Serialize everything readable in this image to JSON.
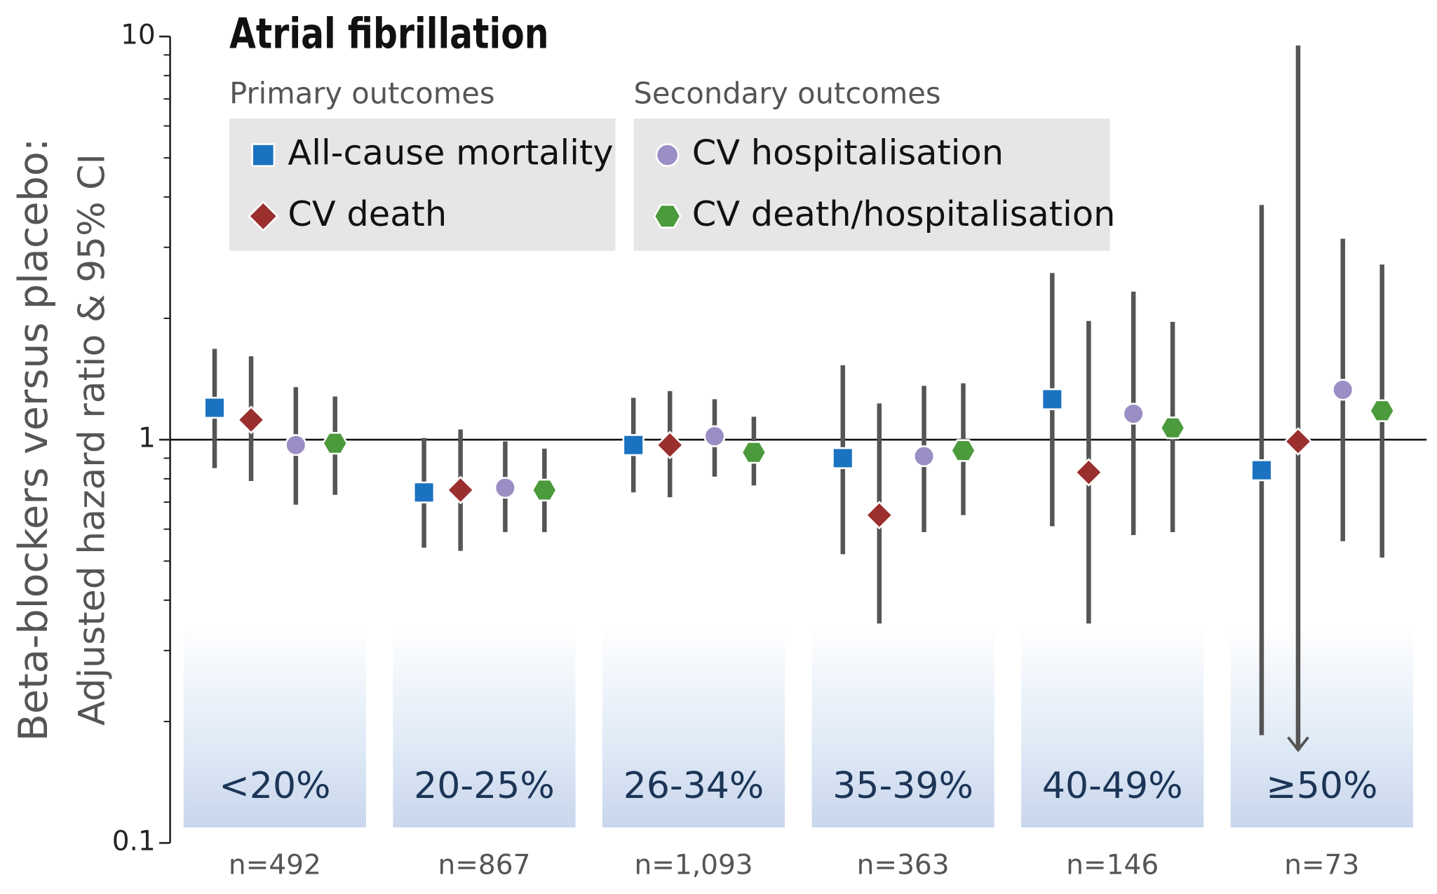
{
  "chart_data": {
    "type": "forest",
    "title": "Atrial fibrillation",
    "ylabel": [
      "Beta-blockers versus placebo:",
      "Adjusted hazard ratio & 95% CI"
    ],
    "log_scale": true,
    "ylim": [
      0.1,
      10
    ],
    "yticks": [
      0.1,
      1,
      10
    ],
    "minor_ticks": true,
    "reference_line": 1,
    "categories": [
      "<20%",
      "20-25%",
      "26-34%",
      "35-39%",
      "40-49%",
      "≥50%"
    ],
    "n_labels": [
      "n=492",
      "n=867",
      "n=1,093",
      "n=363",
      "n=146",
      "n=73"
    ],
    "legend_groups": [
      {
        "title": "Primary outcomes",
        "series": [
          0,
          1
        ]
      },
      {
        "title": "Secondary outcomes",
        "series": [
          2,
          3
        ]
      }
    ],
    "series": [
      {
        "name": "All-cause mortality",
        "color": "#1a72c0",
        "marker": "square",
        "values": [
          1.2,
          0.74,
          0.97,
          0.9,
          1.26,
          0.84
        ],
        "lower": [
          0.85,
          0.54,
          0.74,
          0.52,
          0.61,
          0.185
        ],
        "upper": [
          1.68,
          1.01,
          1.27,
          1.53,
          2.59,
          3.82
        ]
      },
      {
        "name": "CV death",
        "color": "#9a2f2e",
        "marker": "diamond",
        "values": [
          1.12,
          0.75,
          0.97,
          0.65,
          0.83,
          0.99
        ],
        "lower": [
          0.79,
          0.53,
          0.72,
          0.35,
          0.35,
          0.17
        ],
        "upper": [
          1.61,
          1.06,
          1.32,
          1.23,
          1.97,
          9.5
        ],
        "open_lower": [
          false,
          false,
          false,
          false,
          false,
          true
        ]
      },
      {
        "name": "CV hospitalisation",
        "color": "#9b8ec4",
        "marker": "circle",
        "values": [
          0.97,
          0.76,
          1.02,
          0.91,
          1.16,
          1.33
        ],
        "lower": [
          0.69,
          0.59,
          0.81,
          0.59,
          0.58,
          0.56
        ],
        "upper": [
          1.35,
          0.99,
          1.26,
          1.36,
          2.33,
          3.15
        ]
      },
      {
        "name": "CV death/hospitalisation",
        "color": "#4b9a3b",
        "marker": "hexagon",
        "values": [
          0.98,
          0.75,
          0.93,
          0.94,
          1.07,
          1.18
        ],
        "lower": [
          0.73,
          0.59,
          0.77,
          0.65,
          0.59,
          0.51
        ],
        "upper": [
          1.28,
          0.95,
          1.14,
          1.38,
          1.96,
          2.72
        ]
      }
    ]
  }
}
